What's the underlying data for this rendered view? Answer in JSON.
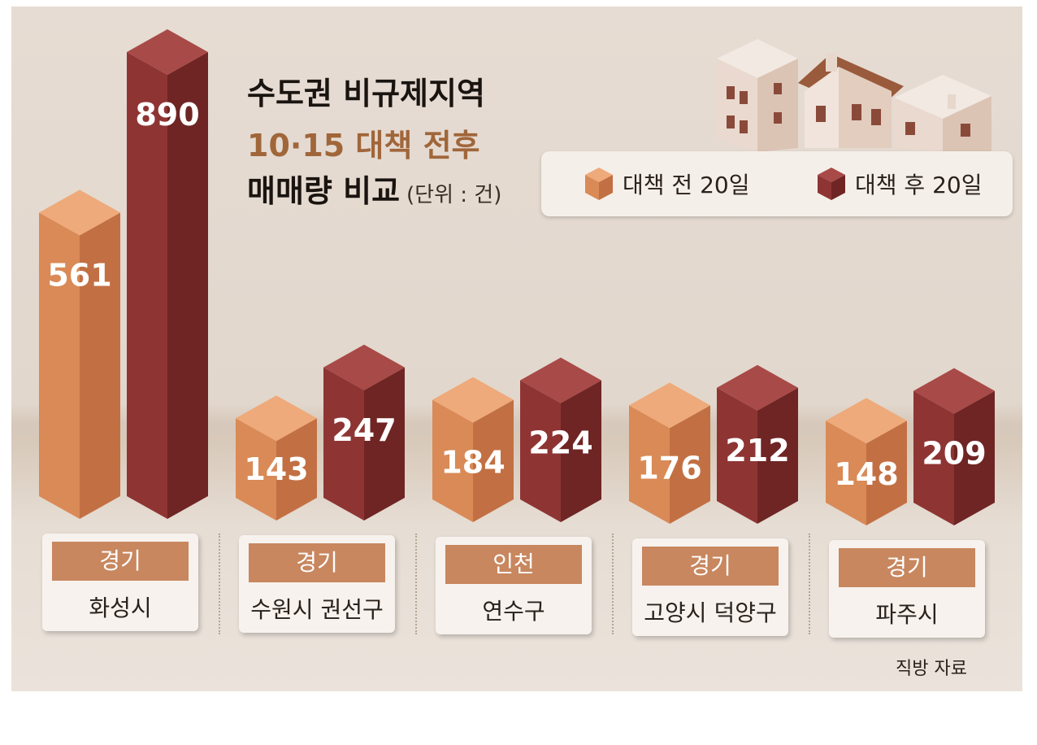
{
  "title": {
    "line1": "수도권 비규제지역",
    "line2": "10·15 대책 전후",
    "line3": "매매량 비교",
    "unit": "(단위 : 건)"
  },
  "source": "직방 자료",
  "colors": {
    "before": "#d98a56",
    "after": "#8e3534",
    "label_box": "#c8875f"
  },
  "chart_data": {
    "type": "bar",
    "categories": [
      {
        "province": "경기",
        "city": "화성시"
      },
      {
        "province": "경기",
        "city": "수원시 권선구"
      },
      {
        "province": "인천",
        "city": "연수구"
      },
      {
        "province": "경기",
        "city": "고양시 덕양구"
      },
      {
        "province": "경기",
        "city": "파주시"
      }
    ],
    "series": [
      {
        "name": "대책 전 20일",
        "values": [
          561,
          143,
          184,
          176,
          148
        ],
        "labels": [
          "561",
          "143",
          "184",
          "176",
          "148"
        ]
      },
      {
        "name": "대책 후 20일",
        "values": [
          890,
          247,
          224,
          212,
          209
        ],
        "labels": [
          "890",
          "247",
          "224",
          "212",
          "209"
        ]
      }
    ],
    "ylabel": "",
    "legend": "top-right"
  }
}
